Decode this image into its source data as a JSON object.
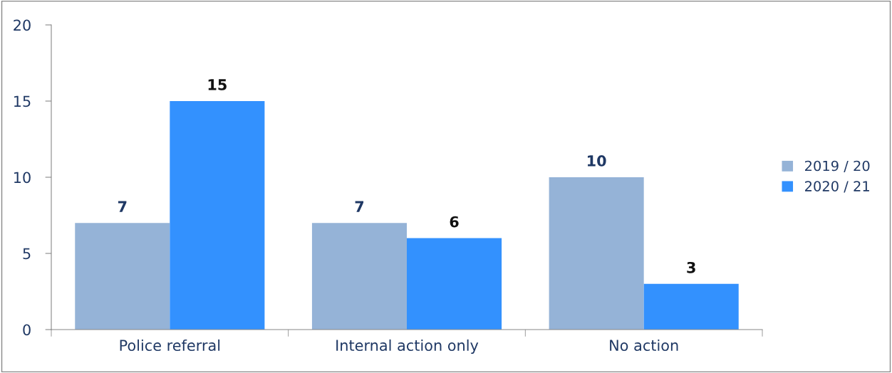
{
  "chart_data": {
    "type": "bar",
    "categories": [
      "Police referral",
      "Internal action only",
      "No action"
    ],
    "series": [
      {
        "name": "2019 / 20",
        "color": "#95b3d7",
        "values": [
          7,
          7,
          10
        ]
      },
      {
        "name": "2020 / 21",
        "color": "#3391fe",
        "values": [
          15,
          6,
          3
        ]
      }
    ],
    "ylim": [
      0,
      20
    ],
    "yticks": [
      0,
      5,
      10,
      15,
      20
    ],
    "grid": false,
    "legend": "right",
    "data_labels": true
  }
}
